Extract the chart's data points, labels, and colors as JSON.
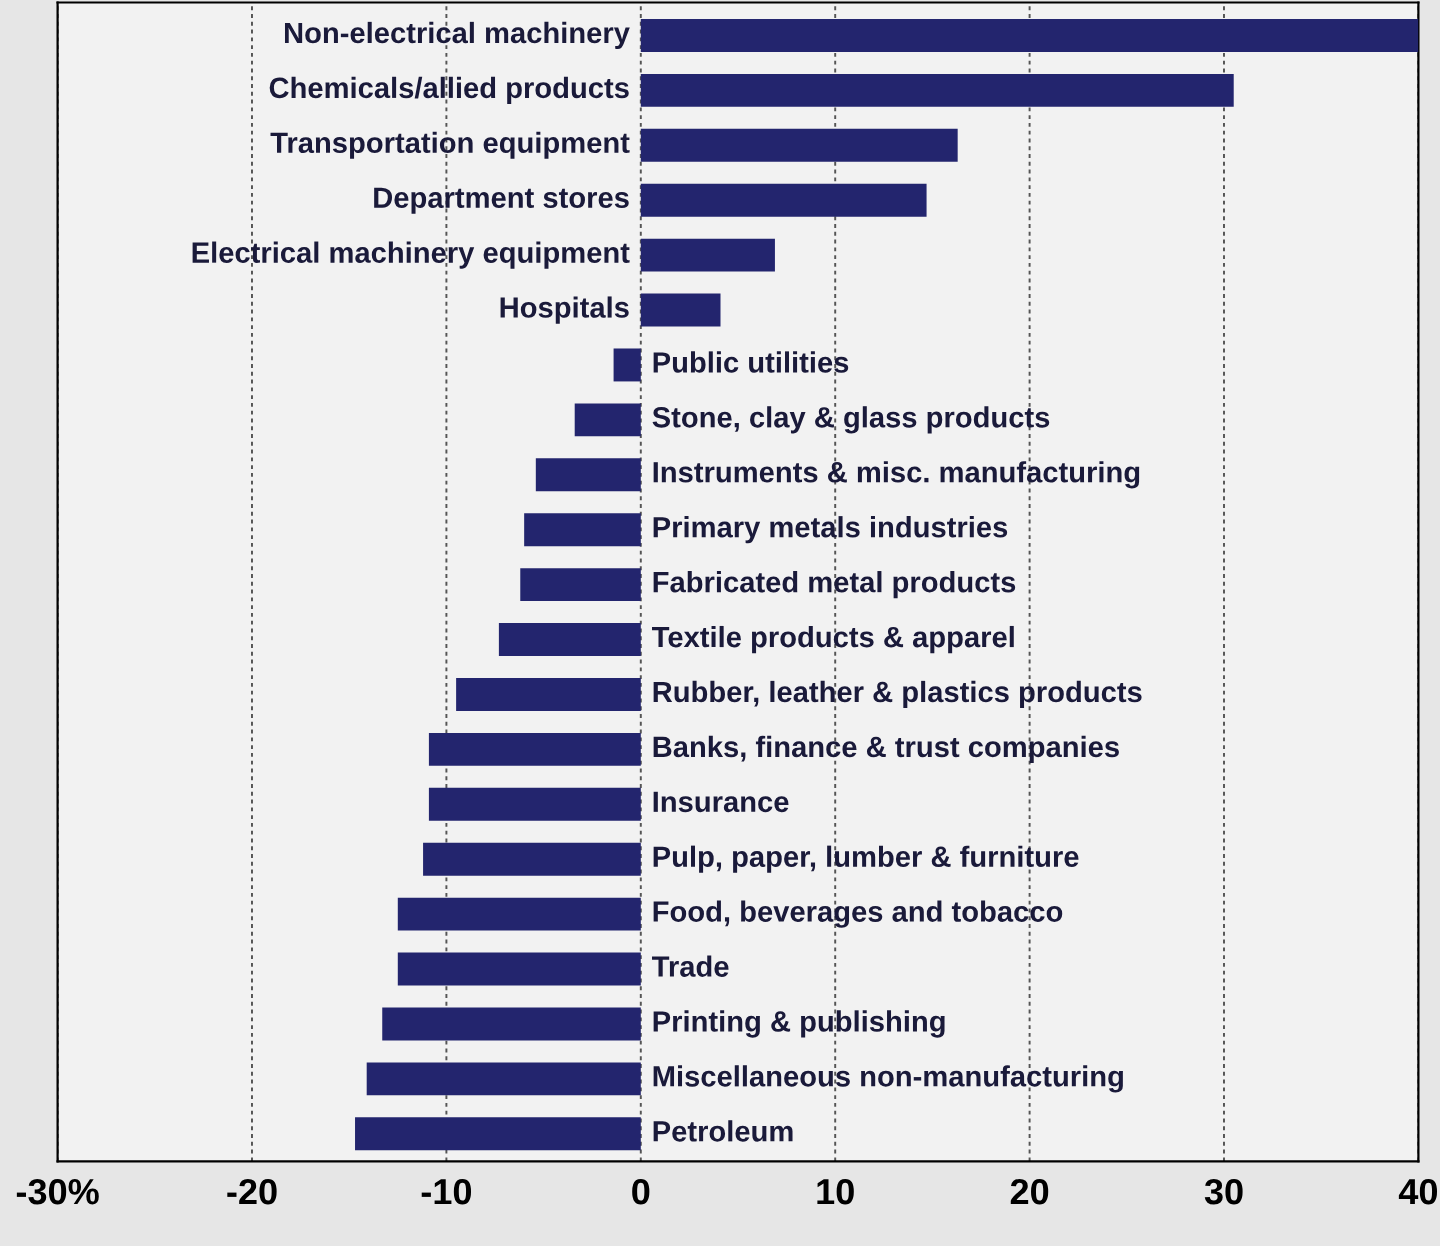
{
  "chart_data": {
    "type": "bar",
    "orientation": "horizontal",
    "categories": [
      "Non-electrical machinery",
      "Chemicals/allied products",
      "Transportation equipment",
      "Department stores",
      "Electrical machinery equipment",
      "Hospitals",
      "Public utilities",
      "Stone, clay & glass products",
      "Instruments & misc. manufacturing",
      "Primary metals industries",
      "Fabricated metal products",
      "Textile products & apparel",
      "Rubber, leather & plastics products",
      "Banks, finance & trust companies",
      "Insurance",
      "Pulp, paper, lumber & furniture",
      "Food, beverages and tobacco",
      "Trade",
      "Printing & publishing",
      "Miscellaneous non-manufacturing",
      "Petroleum"
    ],
    "values": [
      40,
      30.5,
      16.3,
      14.7,
      6.9,
      4.1,
      -1.4,
      -3.4,
      -5.4,
      -6.0,
      -6.2,
      -7.3,
      -9.5,
      -10.9,
      -10.9,
      -11.2,
      -12.5,
      -12.5,
      -13.3,
      -14.1,
      -14.7
    ],
    "color": "#23256e",
    "xlim": [
      -30,
      40
    ],
    "xticks": [
      {
        "value": -30,
        "label": "-30%"
      },
      -20,
      -10,
      0,
      10,
      20,
      30,
      40
    ],
    "grid": "x"
  }
}
